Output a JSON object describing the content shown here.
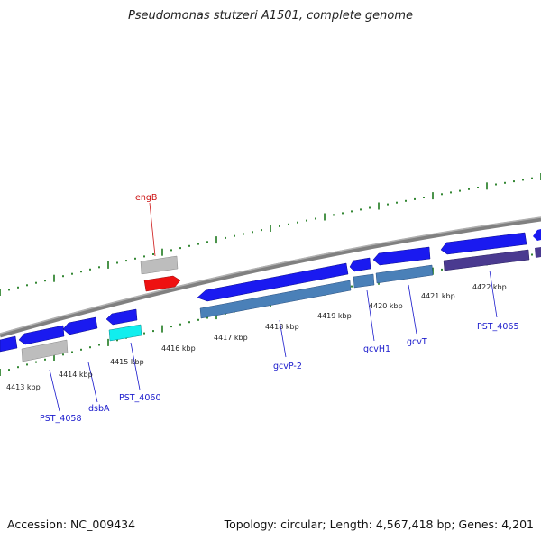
{
  "title": "Pseudomonas stutzeri A1501, complete genome",
  "footer": {
    "accession": "Accession: NC_009434",
    "summary": "Topology: circular; Length: 4,567,418 bp; Genes: 4,201"
  },
  "colors": {
    "backbone": "#888888",
    "tick": "#1e7a1e",
    "label_blue": "#1a1acc",
    "label_red": "#cc1111",
    "cds": "#1a1af0",
    "gene_grey": "#b8b8b8",
    "rrna_red": "#ee1111",
    "cyan": "#11eeee",
    "steel": "#4a80b8",
    "purple": "#4a3a90"
  },
  "ticks": [
    "4413 kbp",
    "4414 kbp",
    "4415 kbp",
    "4416 kbp",
    "4417 kbp",
    "4418 kbp",
    "4419 kbp",
    "4420 kbp",
    "4421 kbp",
    "4422 kbp"
  ],
  "gene_labels": [
    "engB",
    "PST_4058",
    "dsbA",
    "PST_4060",
    "gcvP-2",
    "gcvH1",
    "gcvT",
    "PST_4065"
  ]
}
